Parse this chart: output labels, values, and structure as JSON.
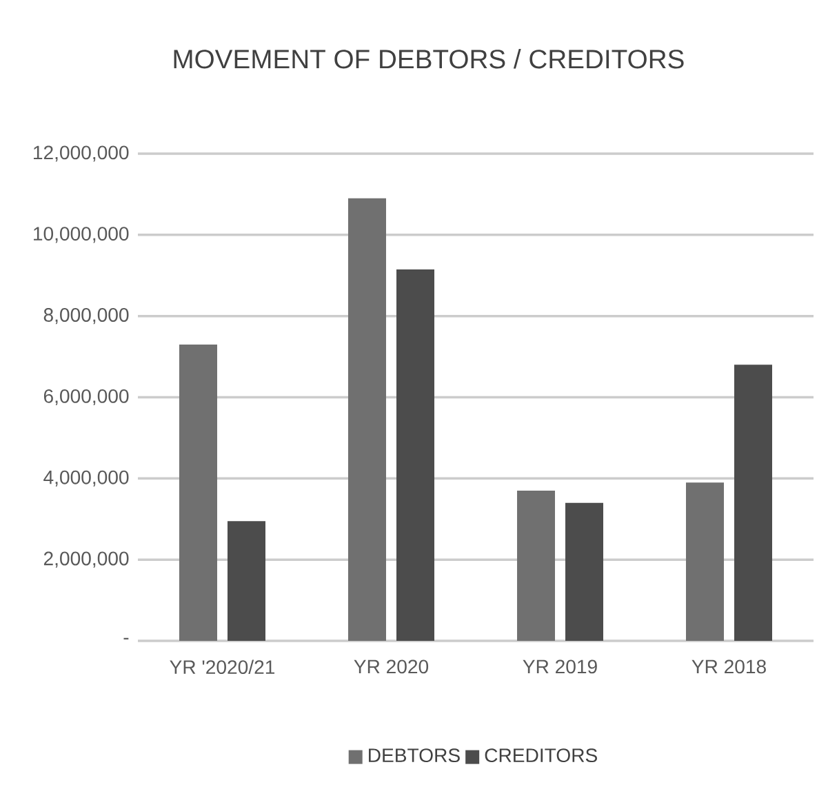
{
  "chart_data": {
    "type": "bar",
    "title": "MOVEMENT  OF DEBTORS / CREDITORS",
    "categories": [
      "YR '2020/21",
      "YR 2020",
      "YR 2019",
      "YR 2018"
    ],
    "series": [
      {
        "name": "DEBTORS",
        "color": "#707070",
        "values": [
          7300000,
          10900000,
          3700000,
          3900000
        ]
      },
      {
        "name": "CREDITORS",
        "color": "#4c4c4c",
        "values": [
          2950000,
          9150000,
          3400000,
          6800000
        ]
      }
    ],
    "ylim": [
      0,
      12000000
    ],
    "yticks": [
      {
        "value": 0,
        "label": "-"
      },
      {
        "value": 2000000,
        "label": "2,000,000"
      },
      {
        "value": 4000000,
        "label": "4,000,000"
      },
      {
        "value": 6000000,
        "label": "6,000,000"
      },
      {
        "value": 8000000,
        "label": "8,000,000"
      },
      {
        "value": 10000000,
        "label": "10,000,000"
      },
      {
        "value": 12000000,
        "label": "12,000,000"
      }
    ],
    "grid": "y",
    "legend": "bottom"
  }
}
